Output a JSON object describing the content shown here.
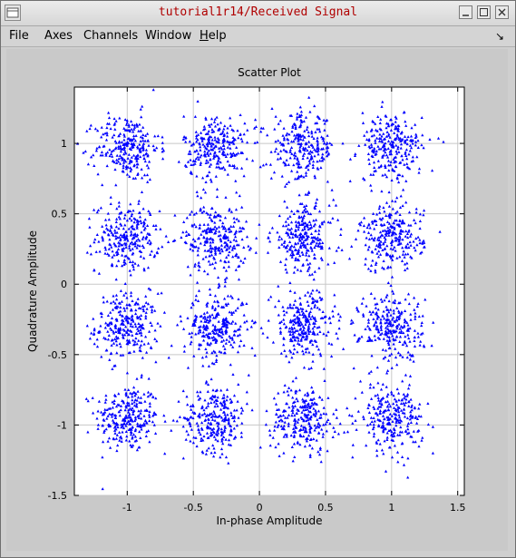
{
  "window": {
    "title": "tutorial1r14/Received Signal",
    "buttons": [
      "minimize",
      "maximize",
      "close"
    ]
  },
  "menu": {
    "items": [
      "File",
      "Axes",
      "Channels",
      "Window",
      "Help"
    ],
    "dock_icon": "↘"
  },
  "colors": {
    "title": "#b00000",
    "points": "#0000ff",
    "axes_bg": "#ffffff",
    "grid": "#c8c8c8"
  },
  "chart_data": {
    "type": "scatter",
    "title": "Scatter Plot",
    "xlabel": "In-phase Amplitude",
    "ylabel": "Quadrature Amplitude",
    "xlim": [
      -1.4,
      1.55
    ],
    "ylim": [
      -1.5,
      1.4
    ],
    "xticks": [
      -1,
      -0.5,
      0,
      0.5,
      1,
      1.5
    ],
    "yticks": [
      -1.5,
      -1,
      -0.5,
      0,
      0.5,
      1
    ],
    "grid": true,
    "series": [
      {
        "constellation_centers_x": [
          -1,
          -0.33,
          0.33,
          1
        ],
        "constellation_centers_y": [
          -0.95,
          -0.3,
          0.33,
          0.97
        ],
        "spread_std": 0.12,
        "points_per_cluster": 260
      }
    ]
  }
}
